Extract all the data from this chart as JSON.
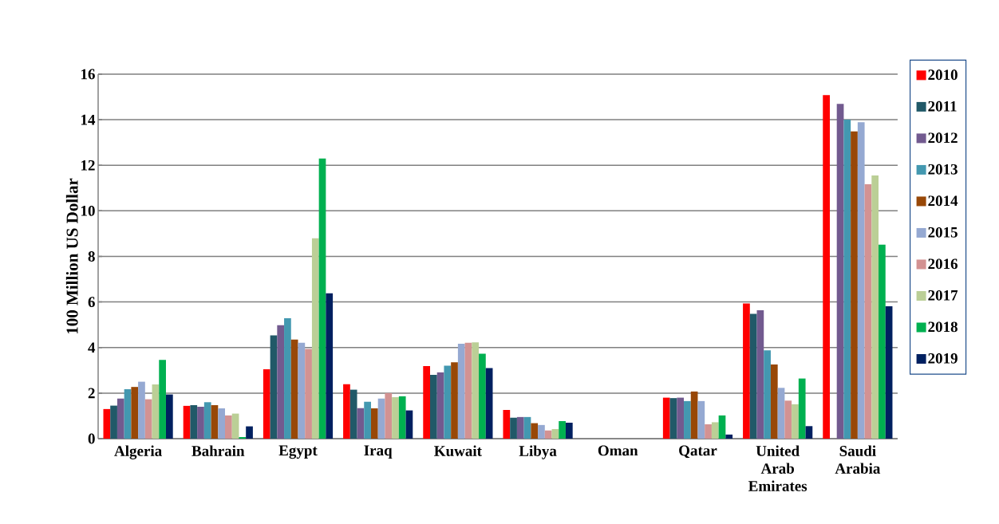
{
  "chart_data": {
    "type": "bar",
    "ylabel": "100 Million US Dollar",
    "categories": [
      "Algeria",
      "Bahrain",
      "Egypt",
      "Iraq",
      "Kuwait",
      "Libya",
      "Oman",
      "Qatar",
      "United Arab Emirates",
      "Saudi Arabia"
    ],
    "ylim": [
      0,
      16
    ],
    "yticks": [
      0,
      2,
      4,
      6,
      8,
      10,
      12,
      14,
      16
    ],
    "grid": "y",
    "legend": "right",
    "series": [
      {
        "name": "2010",
        "color": "#ff0000",
        "values": [
          1.3,
          1.44,
          3.05,
          2.39,
          3.19,
          1.26,
          null,
          1.8,
          5.93,
          15.08
        ]
      },
      {
        "name": "2011",
        "color": "#215968",
        "values": [
          1.45,
          1.47,
          4.53,
          2.15,
          2.8,
          0.92,
          null,
          1.78,
          5.48,
          null
        ]
      },
      {
        "name": "2012",
        "color": "#725a8f",
        "values": [
          1.76,
          1.4,
          4.98,
          1.34,
          2.91,
          0.95,
          null,
          1.8,
          5.64,
          14.7
        ]
      },
      {
        "name": "2013",
        "color": "#4398b0",
        "values": [
          2.17,
          1.6,
          5.29,
          1.62,
          3.2,
          0.95,
          null,
          1.65,
          3.88,
          14.0
        ]
      },
      {
        "name": "2014",
        "color": "#984807",
        "values": [
          2.27,
          1.47,
          4.35,
          1.33,
          3.35,
          0.68,
          null,
          2.07,
          3.26,
          13.49
        ]
      },
      {
        "name": "2015",
        "color": "#95a9d2",
        "values": [
          2.5,
          1.33,
          4.21,
          1.76,
          4.17,
          0.6,
          null,
          1.65,
          2.23,
          13.89
        ]
      },
      {
        "name": "2016",
        "color": "#d39292",
        "values": [
          1.73,
          1.02,
          3.94,
          2.0,
          4.21,
          0.36,
          null,
          0.63,
          1.67,
          11.17
        ]
      },
      {
        "name": "2017",
        "color": "#bbcf96",
        "values": [
          2.38,
          1.1,
          8.8,
          1.82,
          4.23,
          0.42,
          null,
          0.72,
          1.51,
          11.55
        ]
      },
      {
        "name": "2018",
        "color": "#00b050",
        "values": [
          3.46,
          0.07,
          12.3,
          1.86,
          3.73,
          0.77,
          null,
          1.02,
          2.64,
          8.52
        ]
      },
      {
        "name": "2019",
        "color": "#002060",
        "values": [
          1.94,
          0.54,
          6.38,
          1.24,
          3.1,
          0.7,
          null,
          0.18,
          0.55,
          5.81
        ]
      }
    ]
  }
}
